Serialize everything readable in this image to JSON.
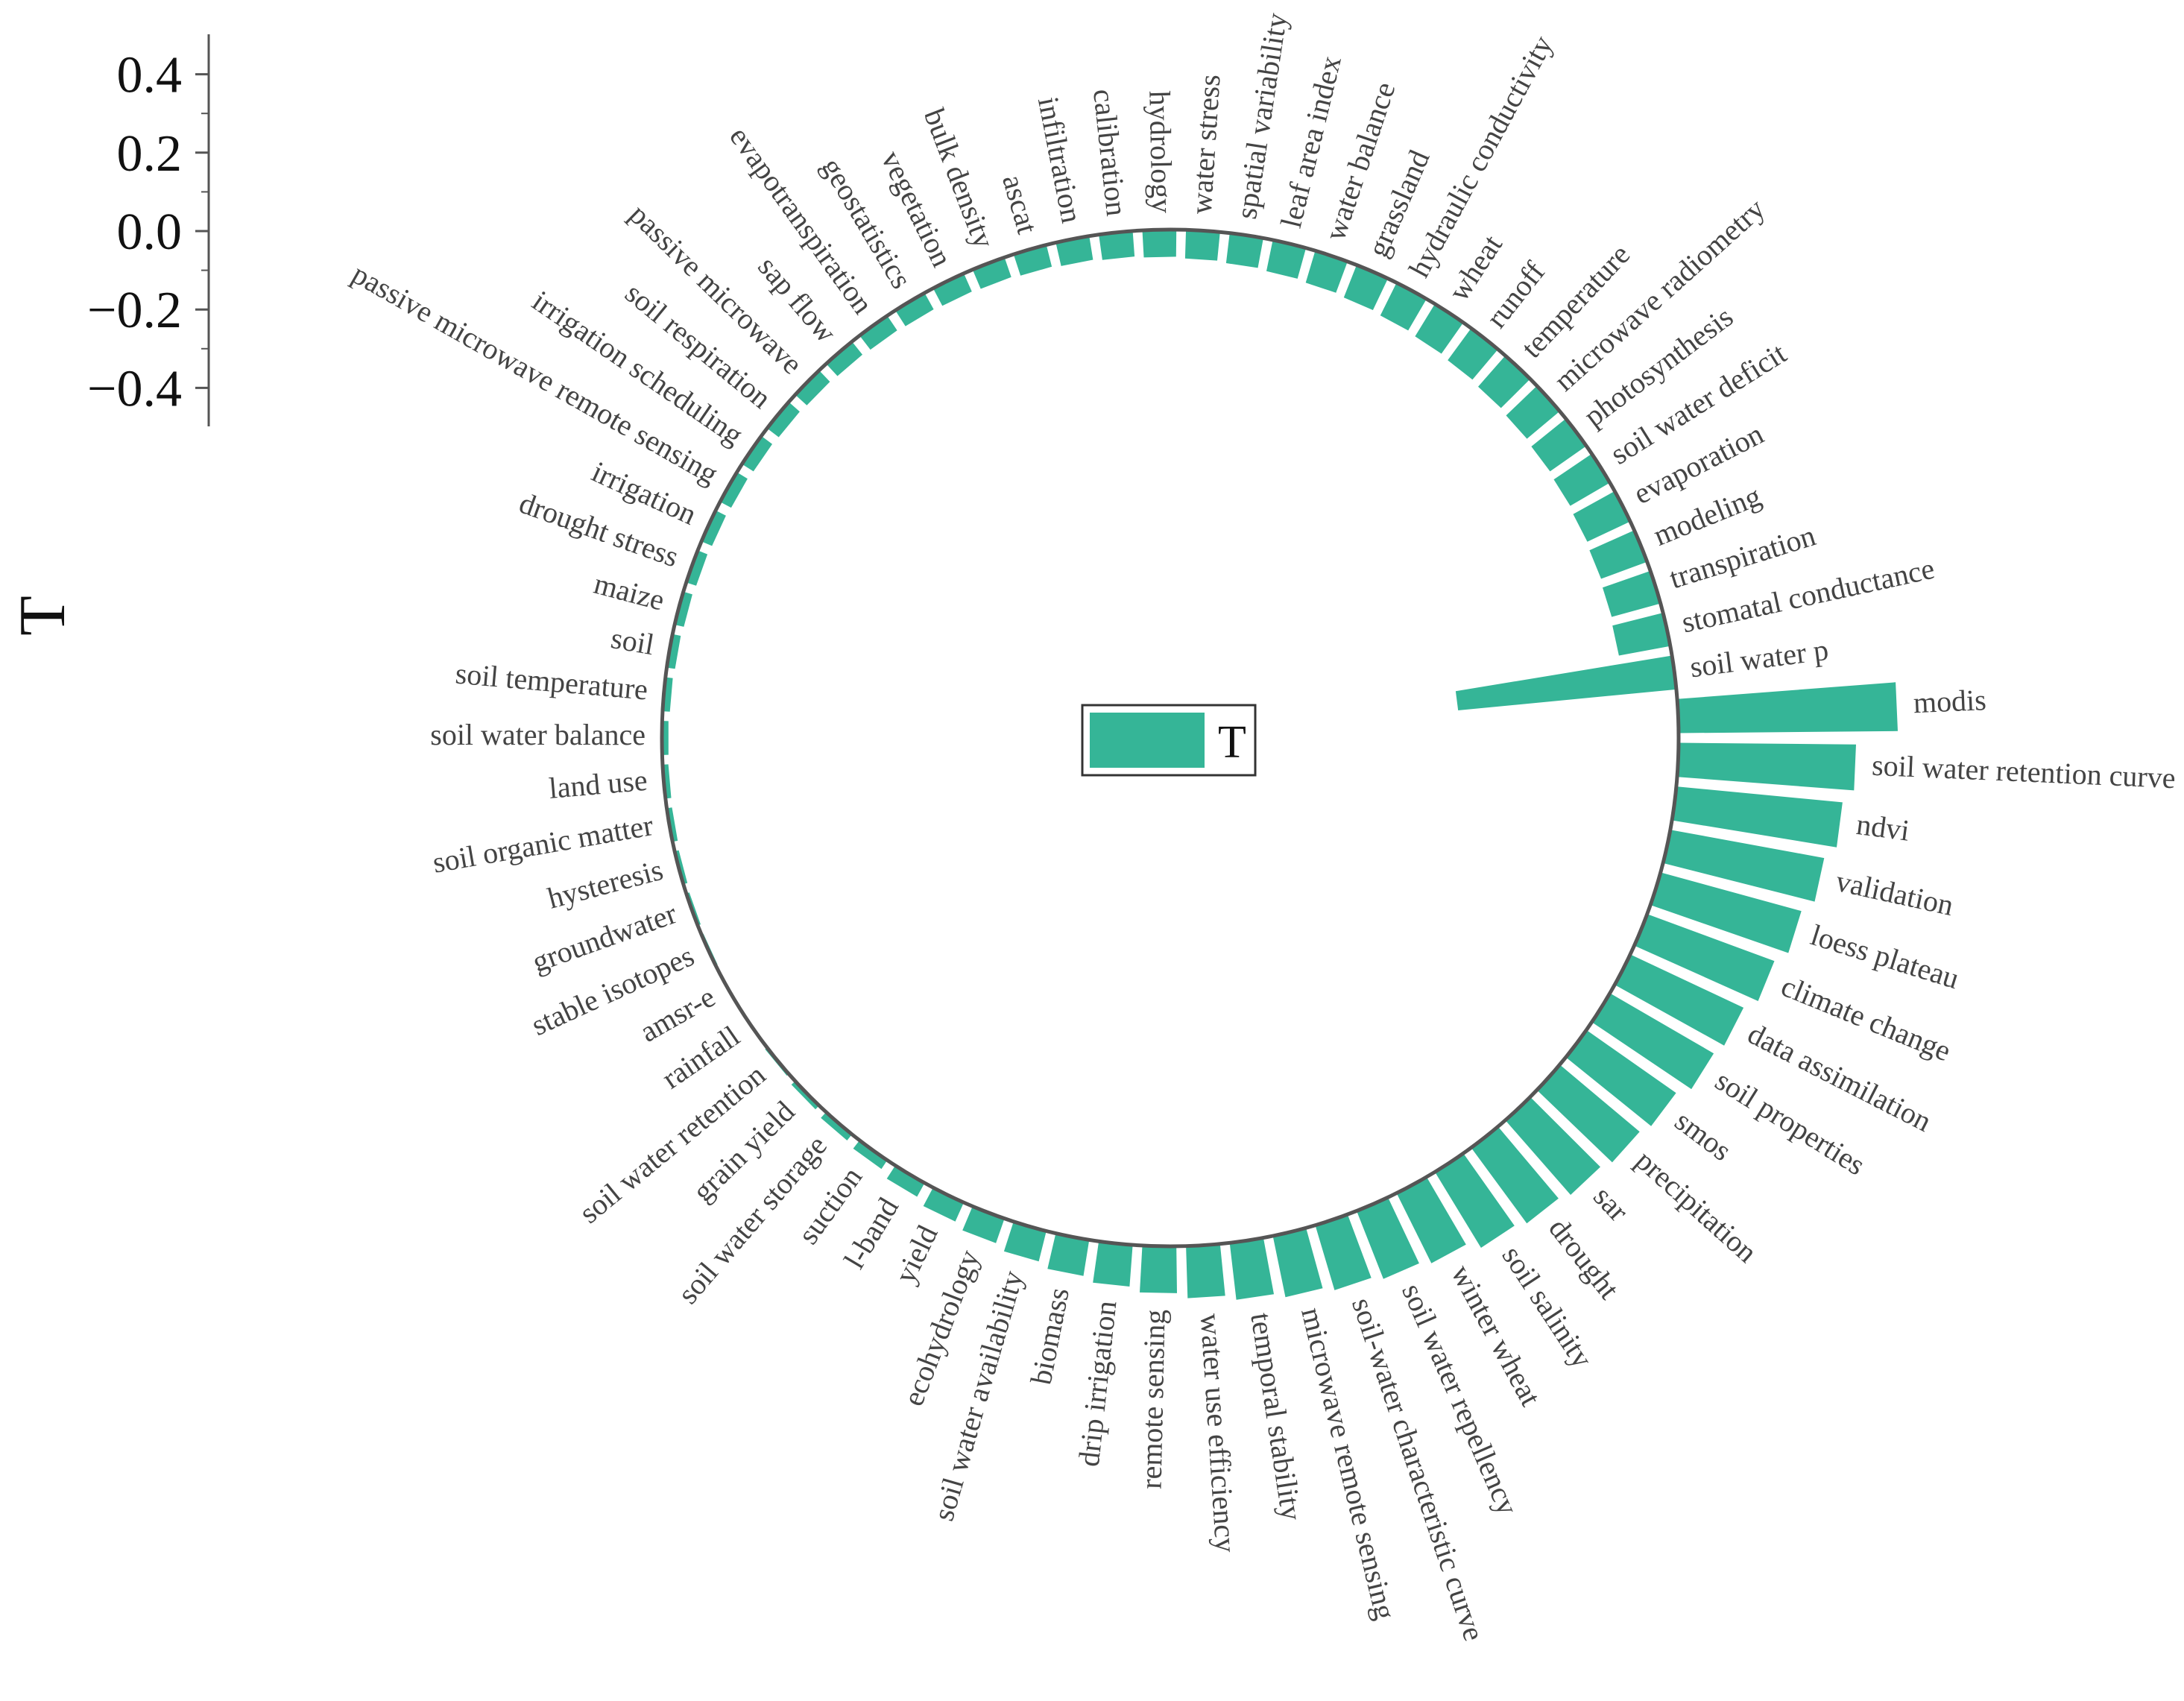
{
  "chart_data": {
    "type": "bar",
    "polar": true,
    "ylabel": "T",
    "legend": {
      "label": "T",
      "placement": "center"
    },
    "colors": {
      "bar": "#35b597",
      "axis": "#555555",
      "label": "#444444",
      "tick": "#111111"
    },
    "ylim": [
      -0.4,
      0.4
    ],
    "yticks": [
      "0.4",
      "0.2",
      "0.0",
      "−0.2",
      "−0.4"
    ],
    "ytick_values": [
      0.4,
      0.2,
      0.0,
      -0.2,
      -0.4
    ],
    "ytick_minor": [
      0.3,
      0.1,
      -0.1,
      -0.3
    ],
    "categories": [
      "modis",
      "soil water retention curve",
      "ndvi",
      "validation",
      "loess plateau",
      "climate change",
      "data assimilation",
      "soil properties",
      "smos",
      "precipitation",
      "sar",
      "drought",
      "soil salinity",
      "winter wheat",
      "soil water repellency",
      "soil-water characteristic curve",
      "microwave remote sensing",
      "temporal stability",
      "water use efficiency",
      "remote sensing",
      "drip irrigation",
      "biomass",
      "soil water availability",
      "ecohydrology",
      "yield",
      "l-band",
      "suction",
      "soil water storage",
      "grain yield",
      "soil water retention",
      "rainfall",
      "amsr-e",
      "stable isotopes",
      "groundwater",
      "hysteresis",
      "soil organic matter",
      "land use",
      "soil water balance",
      "soil temperature",
      "soil",
      "maize",
      "drought stress",
      "irrigation",
      "passive microwave remote sensing",
      "irrigation scheduling",
      "soil respiration",
      "passive microwave",
      "sap flow",
      "evapotranspiration",
      "geostatistics",
      "vegetation",
      "bulk density",
      "ascat",
      "infiltration",
      "calibration",
      "hydrology",
      "water stress",
      "spatial variability",
      "leaf area index",
      "water balance",
      "grassland",
      "hydraulic conductivity",
      "wheat",
      "runoff",
      "temperature",
      "microwave radiometry",
      "photosynthesis",
      "soil water deficit",
      "evaporation",
      "modeling",
      "transpiration",
      "stomatal conductance",
      "soil water p"
    ],
    "values": [
      0.42,
      0.34,
      0.32,
      0.3,
      0.28,
      0.26,
      0.24,
      0.23,
      0.21,
      0.2,
      0.19,
      0.18,
      0.17,
      0.15,
      0.14,
      0.13,
      0.12,
      0.11,
      0.1,
      0.09,
      0.08,
      0.07,
      0.06,
      0.05,
      0.04,
      0.03,
      0.02,
      0.015,
      0.01,
      0.005,
      0.0,
      -0.002,
      -0.004,
      -0.006,
      -0.008,
      -0.01,
      -0.011,
      -0.012,
      -0.014,
      -0.016,
      -0.018,
      -0.02,
      -0.022,
      -0.024,
      -0.026,
      -0.028,
      -0.03,
      -0.032,
      -0.034,
      -0.036,
      -0.038,
      -0.04,
      -0.043,
      -0.046,
      -0.049,
      -0.052,
      -0.055,
      -0.058,
      -0.061,
      -0.064,
      -0.067,
      -0.07,
      -0.073,
      -0.076,
      -0.079,
      -0.082,
      -0.085,
      -0.088,
      -0.091,
      -0.094,
      -0.097,
      -0.1,
      -0.42
    ]
  }
}
